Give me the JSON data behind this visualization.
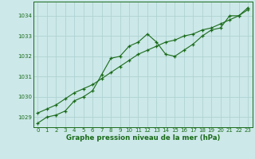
{
  "x_hours": [
    0,
    1,
    2,
    3,
    4,
    5,
    6,
    7,
    8,
    9,
    10,
    11,
    12,
    13,
    14,
    15,
    16,
    17,
    18,
    19,
    20,
    21,
    22,
    23
  ],
  "line1": [
    1028.7,
    1029.0,
    1029.1,
    1029.3,
    1029.8,
    1030.0,
    1030.3,
    1031.1,
    1031.9,
    1032.0,
    1032.5,
    1032.7,
    1033.1,
    1032.7,
    1032.1,
    1032.0,
    1032.3,
    1032.6,
    1033.0,
    1033.3,
    1033.4,
    1034.0,
    1034.0,
    1034.4
  ],
  "line2": [
    1029.2,
    1029.4,
    1029.6,
    1029.9,
    1030.2,
    1030.4,
    1030.6,
    1030.9,
    1031.2,
    1031.5,
    1031.8,
    1032.1,
    1032.3,
    1032.5,
    1032.7,
    1032.8,
    1033.0,
    1033.1,
    1033.3,
    1033.4,
    1033.6,
    1033.8,
    1034.0,
    1034.3
  ],
  "ylim": [
    1028.5,
    1034.7
  ],
  "yticks": [
    1029,
    1030,
    1031,
    1032,
    1033,
    1034
  ],
  "xticks": [
    0,
    1,
    2,
    3,
    4,
    5,
    6,
    7,
    8,
    9,
    10,
    11,
    12,
    13,
    14,
    15,
    16,
    17,
    18,
    19,
    20,
    21,
    22,
    23
  ],
  "line_color": "#1a6b1a",
  "bg_color": "#cce8e8",
  "grid_color": "#aacfcf",
  "xlabel": "Graphe pression niveau de la mer (hPa)",
  "xlabel_color": "#1a6b1a",
  "marker": "+",
  "linewidth": 0.8,
  "markersize": 3.5,
  "markeredgewidth": 0.9,
  "tick_fontsize": 5.0,
  "xlabel_fontsize": 6.2
}
